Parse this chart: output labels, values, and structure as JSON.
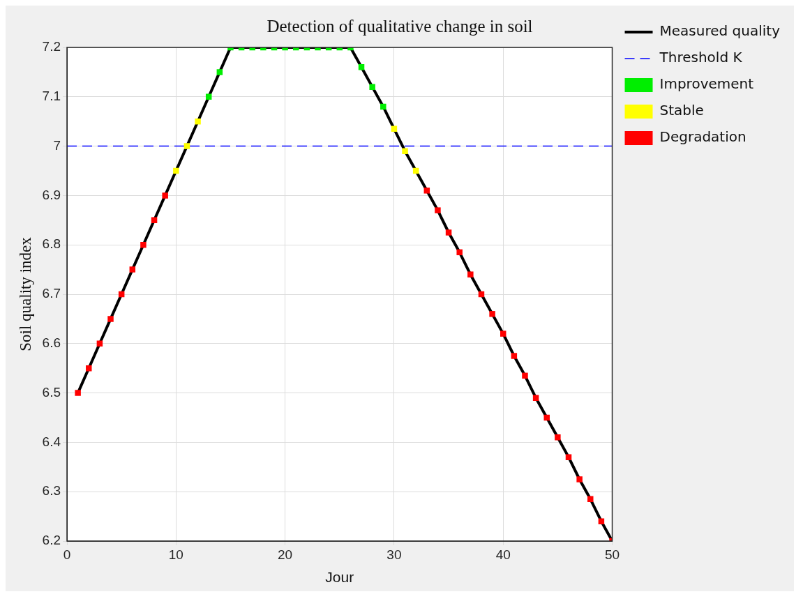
{
  "chart_data": {
    "type": "line",
    "title": "Detection of qualitative change in soil",
    "xlabel": "Jour",
    "ylabel": "Soil quality index",
    "xlim": [
      0,
      50
    ],
    "xticks": [
      0,
      10,
      20,
      30,
      40,
      50
    ],
    "ylim": [
      6.2,
      7.2
    ],
    "yticks": [
      6.2,
      6.3,
      6.4,
      6.5,
      6.6,
      6.7,
      6.8,
      6.9,
      7,
      7.1,
      7.2
    ],
    "grid": true,
    "legend": "right",
    "series": [
      {
        "name": "Measured quality",
        "type": "line",
        "color": "#000000",
        "marker": "none",
        "line_style": "solid",
        "x": [
          1,
          2,
          3,
          4,
          5,
          6,
          7,
          8,
          9,
          10,
          11,
          12,
          13,
          14,
          15,
          16,
          17,
          18,
          19,
          20,
          21,
          22,
          23,
          24,
          25,
          26,
          27,
          28,
          29,
          30,
          31,
          32,
          33,
          34,
          35,
          36,
          37,
          38,
          39,
          40,
          41,
          42,
          43,
          44,
          45,
          46,
          47,
          48,
          49,
          50
        ],
        "values": [
          6.5,
          6.55,
          6.6,
          6.65,
          6.7,
          6.75,
          6.8,
          6.85,
          6.9,
          6.95,
          7,
          7.05,
          7.1,
          7.15,
          7.2,
          7.2,
          7.2,
          7.2,
          7.2,
          7.2,
          7.2,
          7.2,
          7.2,
          7.2,
          7.2,
          7.2,
          7.16,
          7.12,
          7.08,
          7.035,
          6.99,
          6.95,
          6.91,
          6.87,
          6.825,
          6.785,
          6.74,
          6.7,
          6.66,
          6.62,
          6.575,
          6.535,
          6.49,
          6.45,
          6.41,
          6.37,
          6.325,
          6.285,
          6.24,
          6.2
        ]
      },
      {
        "name": "Threshold K",
        "type": "line",
        "color": "#0000ff",
        "marker": "none",
        "line_style": "dashed",
        "x": [
          0,
          50
        ],
        "values": [
          7,
          7
        ]
      },
      {
        "name": "Improvement",
        "type": "scatter",
        "color": "#00ee00",
        "marker": "square",
        "x": [
          13,
          14,
          15,
          16,
          17,
          18,
          19,
          20,
          21,
          22,
          23,
          24,
          25,
          26,
          27,
          28,
          29
        ],
        "values": [
          7.1,
          7.15,
          7.2,
          7.2,
          7.2,
          7.2,
          7.2,
          7.2,
          7.2,
          7.2,
          7.2,
          7.2,
          7.2,
          7.2,
          7.16,
          7.12,
          7.08
        ]
      },
      {
        "name": "Stable",
        "type": "scatter",
        "color": "#ffff00",
        "marker": "square",
        "x": [
          10,
          11,
          12,
          30,
          31,
          32
        ],
        "values": [
          6.95,
          7,
          7.05,
          7.035,
          6.99,
          6.95
        ]
      },
      {
        "name": "Degradation",
        "type": "scatter",
        "color": "#ff0000",
        "marker": "square",
        "x": [
          1,
          2,
          3,
          4,
          5,
          6,
          7,
          8,
          9,
          33,
          34,
          35,
          36,
          37,
          38,
          39,
          40,
          41,
          42,
          43,
          44,
          45,
          46,
          47,
          48,
          49,
          50
        ],
        "values": [
          6.5,
          6.55,
          6.6,
          6.65,
          6.7,
          6.75,
          6.8,
          6.85,
          6.9,
          6.91,
          6.87,
          6.825,
          6.785,
          6.74,
          6.7,
          6.66,
          6.62,
          6.575,
          6.535,
          6.49,
          6.45,
          6.41,
          6.37,
          6.325,
          6.285,
          6.24,
          6.2
        ]
      }
    ]
  }
}
